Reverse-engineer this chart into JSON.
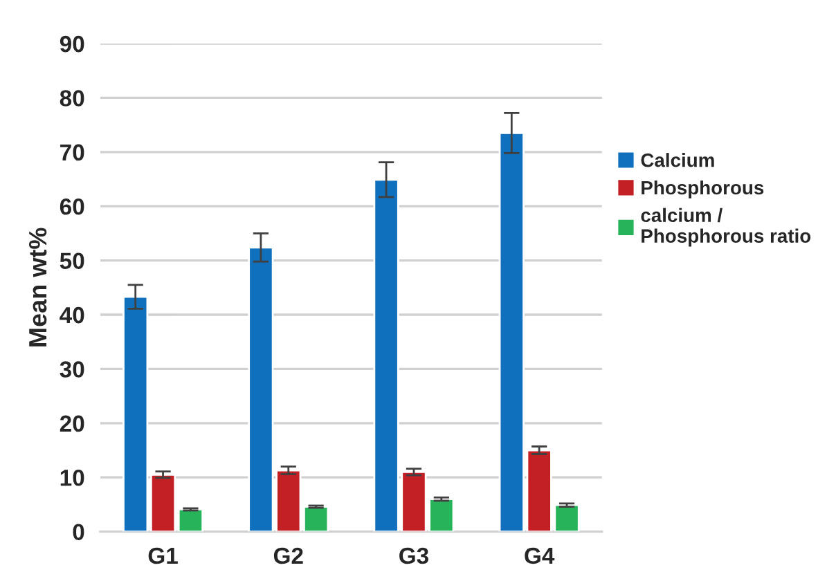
{
  "chart_data": {
    "type": "bar",
    "ylabel": "Mean wt%",
    "categories": [
      "G1",
      "G2",
      "G3",
      "G4"
    ],
    "series": [
      {
        "name": "Calcium",
        "color": "#0f70bd",
        "values": [
          43.3,
          52.4,
          64.9,
          73.5
        ],
        "errors": [
          2.2,
          2.6,
          3.2,
          3.7
        ]
      },
      {
        "name": "Phosphorous",
        "color": "#c32026",
        "values": [
          10.5,
          11.3,
          11.0,
          15.0
        ],
        "errors": [
          0.6,
          0.7,
          0.6,
          0.7
        ]
      },
      {
        "name": "calcium /\nPhosphorous ratio",
        "color": "#27b35a",
        "values": [
          4.1,
          4.6,
          6.0,
          4.9
        ],
        "errors": [
          0.2,
          0.2,
          0.3,
          0.3
        ]
      }
    ],
    "ylim": [
      0,
      90
    ],
    "yticks": [
      0,
      10,
      20,
      30,
      40,
      50,
      60,
      70,
      80,
      90
    ],
    "grid": "y",
    "legend": "right"
  }
}
